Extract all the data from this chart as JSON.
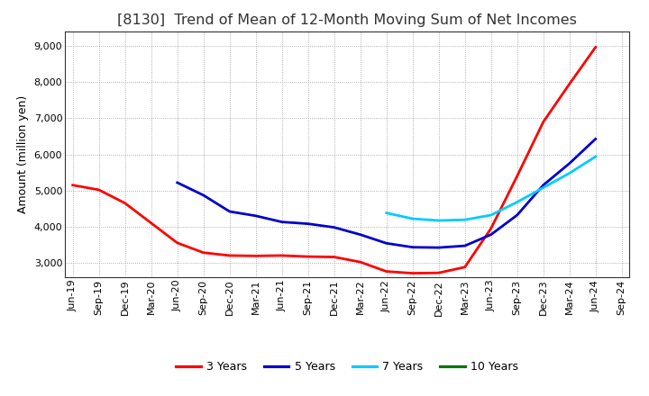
{
  "title": "[8130]  Trend of Mean of 12-Month Moving Sum of Net Incomes",
  "ylabel": "Amount (million yen)",
  "ylim": [
    2600,
    9400
  ],
  "yticks": [
    3000,
    4000,
    5000,
    6000,
    7000,
    8000,
    9000
  ],
  "background_color": "#ffffff",
  "grid_color": "#999999",
  "x_labels": [
    "Jun-19",
    "Sep-19",
    "Dec-19",
    "Mar-20",
    "Jun-20",
    "Sep-20",
    "Dec-20",
    "Mar-21",
    "Jun-21",
    "Sep-21",
    "Dec-21",
    "Mar-22",
    "Jun-22",
    "Sep-22",
    "Dec-22",
    "Mar-23",
    "Jun-23",
    "Sep-23",
    "Dec-23",
    "Mar-24",
    "Jun-24",
    "Sep-24"
  ],
  "series": [
    {
      "label": "3 Years",
      "color": "#ff0000",
      "values": [
        5150,
        5020,
        4650,
        4100,
        3550,
        3280,
        3200,
        3190,
        3200,
        3170,
        3160,
        3020,
        2760,
        2710,
        2720,
        2880,
        3950,
        5400,
        6900,
        7950,
        8970,
        null
      ]
    },
    {
      "label": "5 Years",
      "color": "#0000cc",
      "values": [
        null,
        null,
        null,
        null,
        5220,
        4870,
        4420,
        4300,
        4130,
        4080,
        3980,
        3780,
        3540,
        3430,
        3420,
        3470,
        3780,
        4320,
        5150,
        5750,
        6430,
        null
      ]
    },
    {
      "label": "7 Years",
      "color": "#00ccff",
      "values": [
        null,
        null,
        null,
        null,
        null,
        null,
        null,
        null,
        null,
        null,
        null,
        null,
        4380,
        4220,
        4170,
        4190,
        4320,
        4680,
        5080,
        5480,
        5940,
        null
      ]
    },
    {
      "label": "10 Years",
      "color": "#007700",
      "values": [
        null,
        null,
        null,
        null,
        null,
        null,
        null,
        null,
        null,
        null,
        null,
        null,
        null,
        null,
        null,
        null,
        null,
        null,
        null,
        null,
        null,
        null
      ]
    }
  ],
  "legend_ncol": 4,
  "title_fontsize": 11.5,
  "ylabel_fontsize": 9,
  "tick_fontsize": 8,
  "line_width": 2.0
}
